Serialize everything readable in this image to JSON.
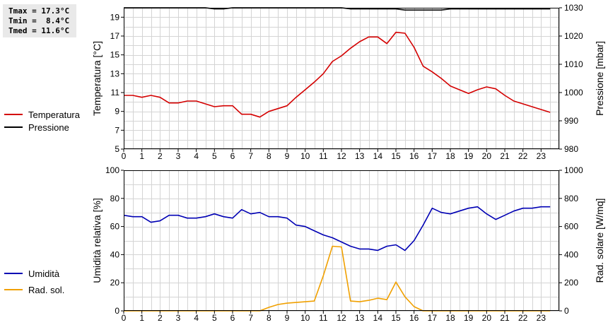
{
  "summary": {
    "tmax": "Tmax = 17.3°C",
    "tmin": "Tmin =  8.4°C",
    "tmed": "Tmed = 11.6°C"
  },
  "legend_top": [
    {
      "label": "Temperatura",
      "color": "#d40000"
    },
    {
      "label": "Pressione",
      "color": "#000000"
    }
  ],
  "legend_bottom": [
    {
      "label": "Umidità",
      "color": "#0000b4"
    },
    {
      "label": "Rad. sol.",
      "color": "#f0a000"
    }
  ],
  "chart_data": [
    {
      "type": "line",
      "ylabel": "Temperatura [°C]",
      "y2label": "Pressione [mbar]",
      "xlim": [
        0,
        24
      ],
      "ylim": [
        5,
        20
      ],
      "y2lim": [
        980,
        1030
      ],
      "xticks": [
        0,
        1,
        2,
        3,
        4,
        5,
        6,
        7,
        8,
        9,
        10,
        11,
        12,
        13,
        14,
        15,
        16,
        17,
        18,
        19,
        20,
        21,
        22,
        23
      ],
      "yticks": [
        5,
        7,
        9,
        11,
        13,
        15,
        17,
        19
      ],
      "y2ticks": [
        980,
        990,
        1000,
        1010,
        1020,
        1030
      ],
      "grid": true,
      "series": [
        {
          "name": "Temperatura",
          "axis": "left",
          "color": "#d40000",
          "x": [
            0,
            0.5,
            1,
            1.5,
            2,
            2.5,
            3,
            3.5,
            4,
            4.5,
            5,
            5.5,
            6,
            6.5,
            7,
            7.5,
            8,
            8.5,
            9,
            9.5,
            10,
            10.5,
            11,
            11.5,
            12,
            12.5,
            13,
            13.5,
            14,
            14.5,
            15,
            15.5,
            16,
            16.5,
            17,
            17.5,
            18,
            18.5,
            19,
            19.5,
            20,
            20.5,
            21,
            21.5,
            22,
            22.5,
            23,
            23.5
          ],
          "values": [
            10.7,
            10.7,
            10.5,
            10.7,
            10.5,
            9.9,
            9.9,
            10.1,
            10.1,
            9.8,
            9.5,
            9.6,
            9.6,
            8.7,
            8.7,
            8.4,
            9.0,
            9.3,
            9.6,
            10.5,
            11.3,
            12.1,
            13.0,
            14.3,
            14.9,
            15.7,
            16.4,
            16.9,
            16.9,
            16.2,
            17.4,
            17.3,
            15.8,
            13.8,
            13.2,
            12.5,
            11.7,
            11.3,
            10.9,
            11.3,
            11.6,
            11.4,
            10.7,
            10.1,
            9.8,
            9.5,
            9.2,
            8.9
          ]
        },
        {
          "name": "Pressione",
          "axis": "right",
          "color": "#000000",
          "x": [
            0,
            0.5,
            1,
            1.5,
            2,
            2.5,
            3,
            3.5,
            4,
            4.5,
            5,
            5.5,
            6,
            6.5,
            7,
            7.5,
            8,
            8.5,
            9,
            9.5,
            10,
            10.5,
            11,
            11.5,
            12,
            12.5,
            13,
            13.5,
            14,
            14.5,
            15,
            15.5,
            16,
            16.5,
            17,
            17.5,
            18,
            18.5,
            19,
            19.5,
            20,
            20.5,
            21,
            21.5,
            22,
            22.5,
            23,
            23.5
          ],
          "values": [
            1030,
            1030,
            1030,
            1030,
            1030,
            1030,
            1030,
            1030,
            1030,
            1030,
            1029.6,
            1029.6,
            1030,
            1030,
            1030,
            1030,
            1030,
            1030,
            1030,
            1030,
            1030,
            1030,
            1030,
            1030,
            1030,
            1029.6,
            1029.6,
            1029.6,
            1029.6,
            1029.6,
            1029.6,
            1029.2,
            1029.2,
            1029.2,
            1029.2,
            1029.2,
            1029.6,
            1029.6,
            1029.6,
            1029.6,
            1029.6,
            1029.6,
            1029.6,
            1029.6,
            1029.6,
            1029.6,
            1029.6,
            1029.6
          ]
        }
      ]
    },
    {
      "type": "line",
      "ylabel": "Umidità relativa [%]",
      "y2label": "Rad. solare [W/mq]",
      "xlim": [
        0,
        24
      ],
      "ylim": [
        0,
        100
      ],
      "y2lim": [
        0,
        1000
      ],
      "xticks": [
        0,
        1,
        2,
        3,
        4,
        5,
        6,
        7,
        8,
        9,
        10,
        11,
        12,
        13,
        14,
        15,
        16,
        17,
        18,
        19,
        20,
        21,
        22,
        23
      ],
      "yticks": [
        0,
        20,
        40,
        60,
        80,
        100
      ],
      "y2ticks": [
        0,
        200,
        400,
        600,
        800,
        1000
      ],
      "grid": true,
      "series": [
        {
          "name": "Umidità",
          "axis": "left",
          "color": "#0000b4",
          "x": [
            0,
            0.5,
            1,
            1.5,
            2,
            2.5,
            3,
            3.5,
            4,
            4.5,
            5,
            5.5,
            6,
            6.5,
            7,
            7.5,
            8,
            8.5,
            9,
            9.5,
            10,
            10.5,
            11,
            11.5,
            12,
            12.5,
            13,
            13.5,
            14,
            14.5,
            15,
            15.5,
            16,
            16.5,
            17,
            17.5,
            18,
            18.5,
            19,
            19.5,
            20,
            20.5,
            21,
            21.5,
            22,
            22.5,
            23,
            23.5
          ],
          "values": [
            68,
            67,
            67,
            63,
            64,
            68,
            68,
            66,
            66,
            67,
            69,
            67,
            66,
            72,
            69,
            70,
            67,
            67,
            66,
            61,
            60,
            57,
            54,
            52,
            49,
            46,
            44,
            44,
            43,
            46,
            47,
            43,
            50,
            61,
            73,
            70,
            69,
            71,
            73,
            74,
            69,
            65,
            68,
            71,
            73,
            73,
            74,
            74
          ]
        },
        {
          "name": "Rad. sol.",
          "axis": "right",
          "color": "#f0a000",
          "x": [
            0,
            0.5,
            1,
            1.5,
            2,
            2.5,
            3,
            3.5,
            4,
            4.5,
            5,
            5.5,
            6,
            6.5,
            7,
            7.5,
            8,
            8.5,
            9,
            9.5,
            10,
            10.5,
            11,
            11.5,
            12,
            12.5,
            13,
            13.5,
            14,
            14.5,
            15,
            15.5,
            16,
            16.5,
            17,
            17.5,
            18,
            18.5,
            19,
            19.5,
            20,
            20.5,
            21,
            21.5,
            22,
            22.5,
            23,
            23.5
          ],
          "values": [
            0,
            0,
            0,
            0,
            0,
            0,
            0,
            0,
            0,
            0,
            0,
            0,
            0,
            0,
            0,
            0,
            25,
            45,
            55,
            60,
            65,
            70,
            250,
            460,
            455,
            70,
            65,
            75,
            90,
            80,
            205,
            100,
            30,
            0,
            0,
            0,
            0,
            0,
            0,
            0,
            0,
            0,
            0,
            0,
            0,
            0,
            0,
            0
          ]
        }
      ]
    }
  ]
}
